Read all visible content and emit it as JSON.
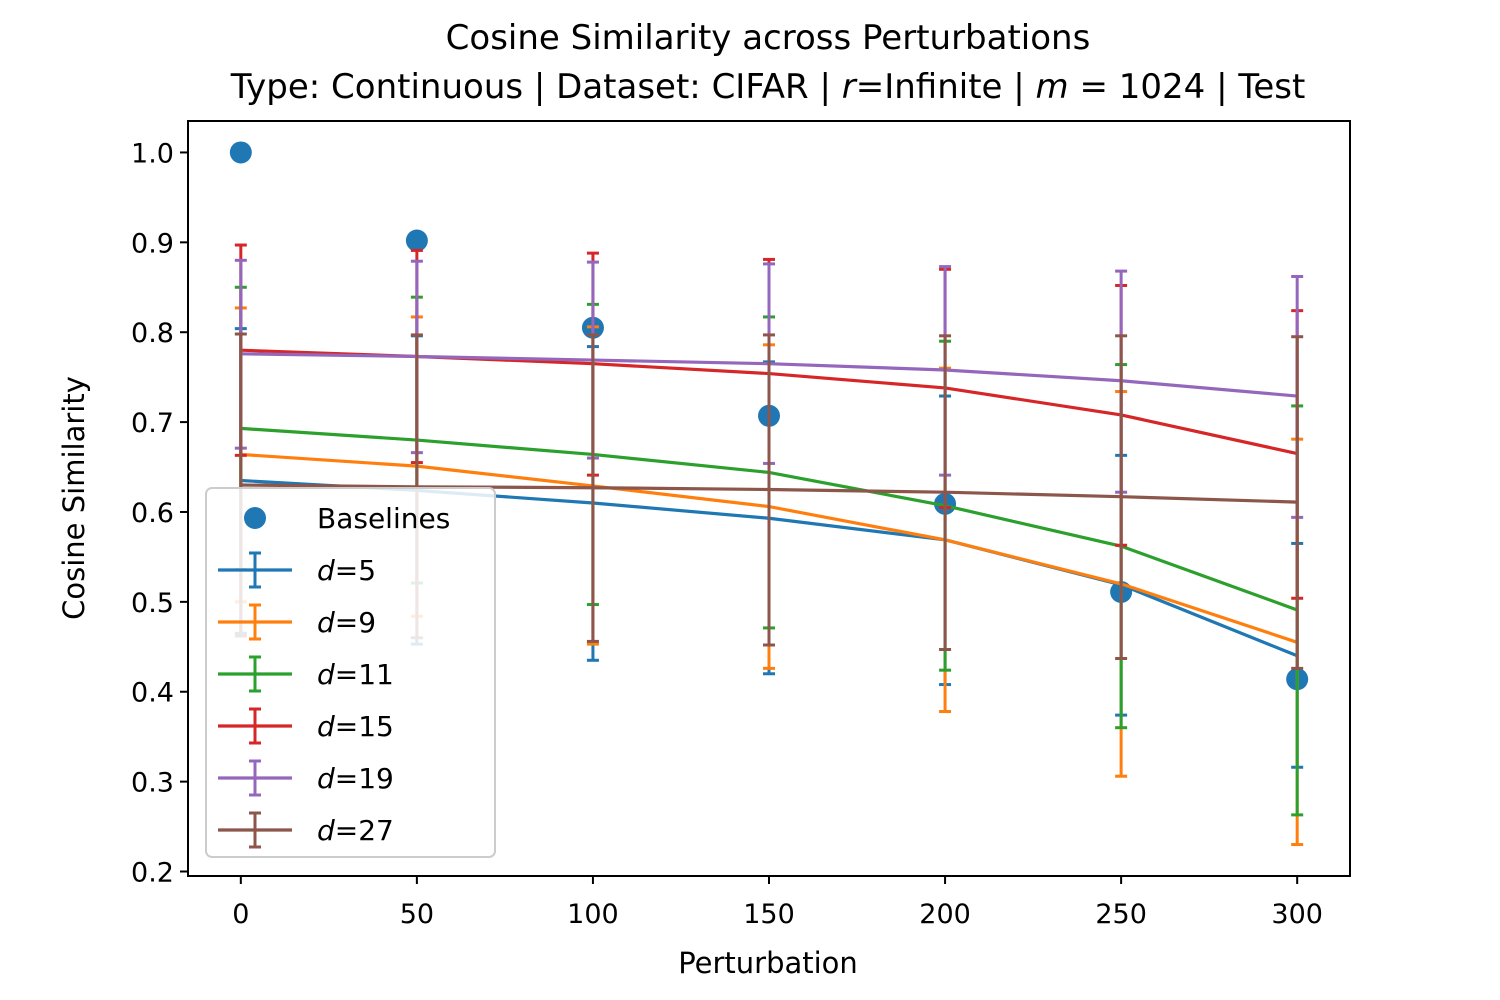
{
  "chart_data": {
    "type": "line",
    "title": "Cosine Similarity across Perturbations",
    "subtitle_parts": {
      "prefix": "Type: Continuous | Dataset: CIFAR | ",
      "r_symbol": "r",
      "r_text": "=Infinite | ",
      "m_symbol": "m",
      "m_text": " = 1024 | Test"
    },
    "xlabel": "Perturbation",
    "ylabel": "Cosine Similarity",
    "xlim": [
      -15,
      315
    ],
    "ylim": [
      0.195,
      1.035
    ],
    "xticks": [
      0,
      50,
      100,
      150,
      200,
      250,
      300
    ],
    "yticks": [
      0.2,
      0.3,
      0.4,
      0.5,
      0.6,
      0.7,
      0.8,
      0.9,
      1.0
    ],
    "grid": false,
    "legend_position": "lower-left",
    "x": [
      0,
      50,
      100,
      150,
      200,
      250,
      300
    ],
    "baselines": {
      "name": "Baselines",
      "color": "#1f77b4",
      "values": [
        1.0,
        0.902,
        0.805,
        0.707,
        0.609,
        0.511,
        0.414
      ]
    },
    "series": [
      {
        "symbol": "d",
        "suffix": "=5",
        "color": "#1f77b4",
        "values": [
          0.635,
          0.624,
          0.61,
          0.593,
          0.569,
          0.519,
          0.44
        ],
        "lower": [
          0.465,
          0.453,
          0.435,
          0.42,
          0.408,
          0.374,
          0.316
        ],
        "upper": [
          0.804,
          0.796,
          0.784,
          0.767,
          0.729,
          0.663,
          0.565
        ]
      },
      {
        "symbol": "d",
        "suffix": "=9",
        "color": "#ff7f0e",
        "values": [
          0.664,
          0.651,
          0.629,
          0.606,
          0.569,
          0.52,
          0.455
        ],
        "lower": [
          0.5,
          0.484,
          0.453,
          0.426,
          0.378,
          0.306,
          0.23
        ],
        "upper": [
          0.827,
          0.817,
          0.806,
          0.786,
          0.76,
          0.734,
          0.681
        ]
      },
      {
        "symbol": "d",
        "suffix": "=11",
        "color": "#2ca02c",
        "values": [
          0.693,
          0.68,
          0.664,
          0.644,
          0.607,
          0.562,
          0.491
        ],
        "lower": [
          0.536,
          0.521,
          0.497,
          0.471,
          0.424,
          0.36,
          0.263
        ],
        "upper": [
          0.85,
          0.839,
          0.831,
          0.817,
          0.79,
          0.764,
          0.718
        ]
      },
      {
        "symbol": "d",
        "suffix": "=15",
        "color": "#d62728",
        "values": [
          0.78,
          0.773,
          0.765,
          0.754,
          0.738,
          0.708,
          0.665
        ],
        "lower": [
          0.663,
          0.655,
          0.641,
          0.625,
          0.605,
          0.563,
          0.504
        ],
        "upper": [
          0.897,
          0.891,
          0.888,
          0.881,
          0.87,
          0.852,
          0.824
        ]
      },
      {
        "symbol": "d",
        "suffix": "=19",
        "color": "#9467bd",
        "values": [
          0.776,
          0.773,
          0.769,
          0.765,
          0.758,
          0.746,
          0.729
        ],
        "lower": [
          0.671,
          0.666,
          0.66,
          0.654,
          0.641,
          0.622,
          0.594
        ],
        "upper": [
          0.88,
          0.879,
          0.878,
          0.876,
          0.873,
          0.868,
          0.862
        ]
      },
      {
        "symbol": "d",
        "suffix": "=27",
        "color": "#8c564b",
        "values": [
          0.63,
          0.628,
          0.627,
          0.625,
          0.622,
          0.617,
          0.611
        ],
        "lower": [
          0.462,
          0.46,
          0.456,
          0.452,
          0.447,
          0.437,
          0.426
        ],
        "upper": [
          0.798,
          0.797,
          0.797,
          0.797,
          0.796,
          0.796,
          0.795
        ]
      }
    ]
  }
}
